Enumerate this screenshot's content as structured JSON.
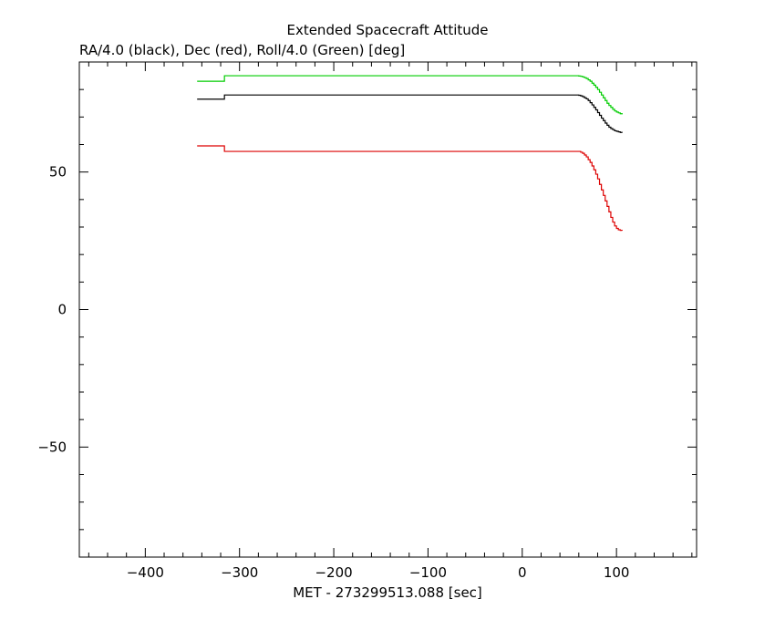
{
  "chart_data": {
    "type": "line",
    "title": "Extended Spacecraft Attitude",
    "subtitle": "RA/4.0 (black), Dec (red), Roll/4.0 (Green) [deg]",
    "xlabel": "MET - 273299513.088 [sec]",
    "ylabel": "",
    "xlim": [
      -470,
      185
    ],
    "ylim": [
      -90,
      90
    ],
    "x_ticks": [
      -400,
      -300,
      -200,
      -100,
      0,
      100
    ],
    "y_ticks": [
      -50,
      0,
      50
    ],
    "grid": false,
    "line_style": "step",
    "series": [
      {
        "color": "#00cc00",
        "x": [
          -345,
          -316,
          -316,
          55,
          60,
          62,
          64,
          66,
          68,
          70,
          72,
          74,
          76,
          78,
          80,
          82,
          84,
          86,
          88,
          90,
          92,
          94,
          96,
          98,
          100,
          102,
          104,
          106
        ],
        "y": [
          83,
          83,
          85,
          85,
          84.9,
          84.8,
          84.6,
          84.3,
          84.0,
          83.5,
          83.0,
          82.3,
          81.6,
          80.8,
          80.0,
          79.0,
          78.0,
          77.0,
          76.0,
          75.0,
          74.2,
          73.5,
          72.8,
          72.2,
          71.8,
          71.5,
          71.2,
          71.0
        ]
      },
      {
        "color": "#000000",
        "x": [
          -345,
          -316,
          -316,
          55,
          60,
          62,
          64,
          66,
          68,
          70,
          72,
          74,
          76,
          78,
          80,
          82,
          84,
          86,
          88,
          90,
          92,
          94,
          96,
          98,
          100,
          102,
          104,
          106
        ],
        "y": [
          76.5,
          76.5,
          78,
          78,
          77.9,
          77.7,
          77.4,
          77.0,
          76.6,
          76.0,
          75.2,
          74.4,
          73.5,
          72.6,
          71.6,
          70.6,
          69.6,
          68.7,
          67.8,
          67.0,
          66.3,
          65.8,
          65.4,
          65.0,
          64.8,
          64.6,
          64.4,
          64.3
        ]
      },
      {
        "color": "#dd0000",
        "x": [
          -345,
          -316,
          -316,
          60,
          62,
          64,
          66,
          68,
          70,
          72,
          74,
          76,
          78,
          80,
          82,
          84,
          86,
          88,
          90,
          92,
          94,
          96,
          98,
          100,
          102,
          104,
          106
        ],
        "y": [
          59.5,
          59.5,
          57.5,
          57.5,
          57.2,
          56.8,
          56.2,
          55.5,
          54.5,
          53.5,
          52.2,
          50.8,
          49.2,
          47.5,
          45.5,
          43.5,
          41.5,
          39.5,
          37.5,
          35.5,
          33.5,
          31.8,
          30.4,
          29.5,
          29.0,
          28.8,
          28.7
        ]
      }
    ]
  }
}
